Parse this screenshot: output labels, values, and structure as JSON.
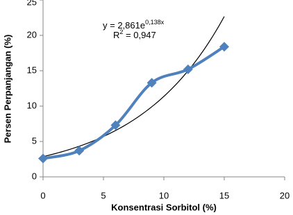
{
  "chart_data": {
    "type": "line",
    "x": [
      0,
      3,
      6,
      9,
      12,
      15
    ],
    "series": [
      {
        "color": "#4f81bd",
        "values": [
          2.6,
          3.7,
          7.3,
          13.3,
          15.2,
          18.4
        ]
      }
    ],
    "trendline": {
      "type": "exponential",
      "a": 2.861,
      "b": 0.138,
      "color": "#000000"
    },
    "annotation": {
      "equation": "y = 2,861e",
      "exponent": "0,138x",
      "r_label": "R",
      "r_power": "2",
      "r_value": " = 0,947"
    },
    "x_label": "Konsentrasi Sorbitol (%)",
    "y_label": "Persen Perpanjangan (%)",
    "xlim": [
      0,
      20
    ],
    "xticks": [
      0,
      5,
      10,
      15,
      20
    ],
    "ylim": [
      0,
      25
    ],
    "yticks": [
      0,
      5,
      10,
      15,
      20,
      25
    ],
    "grid": false
  }
}
